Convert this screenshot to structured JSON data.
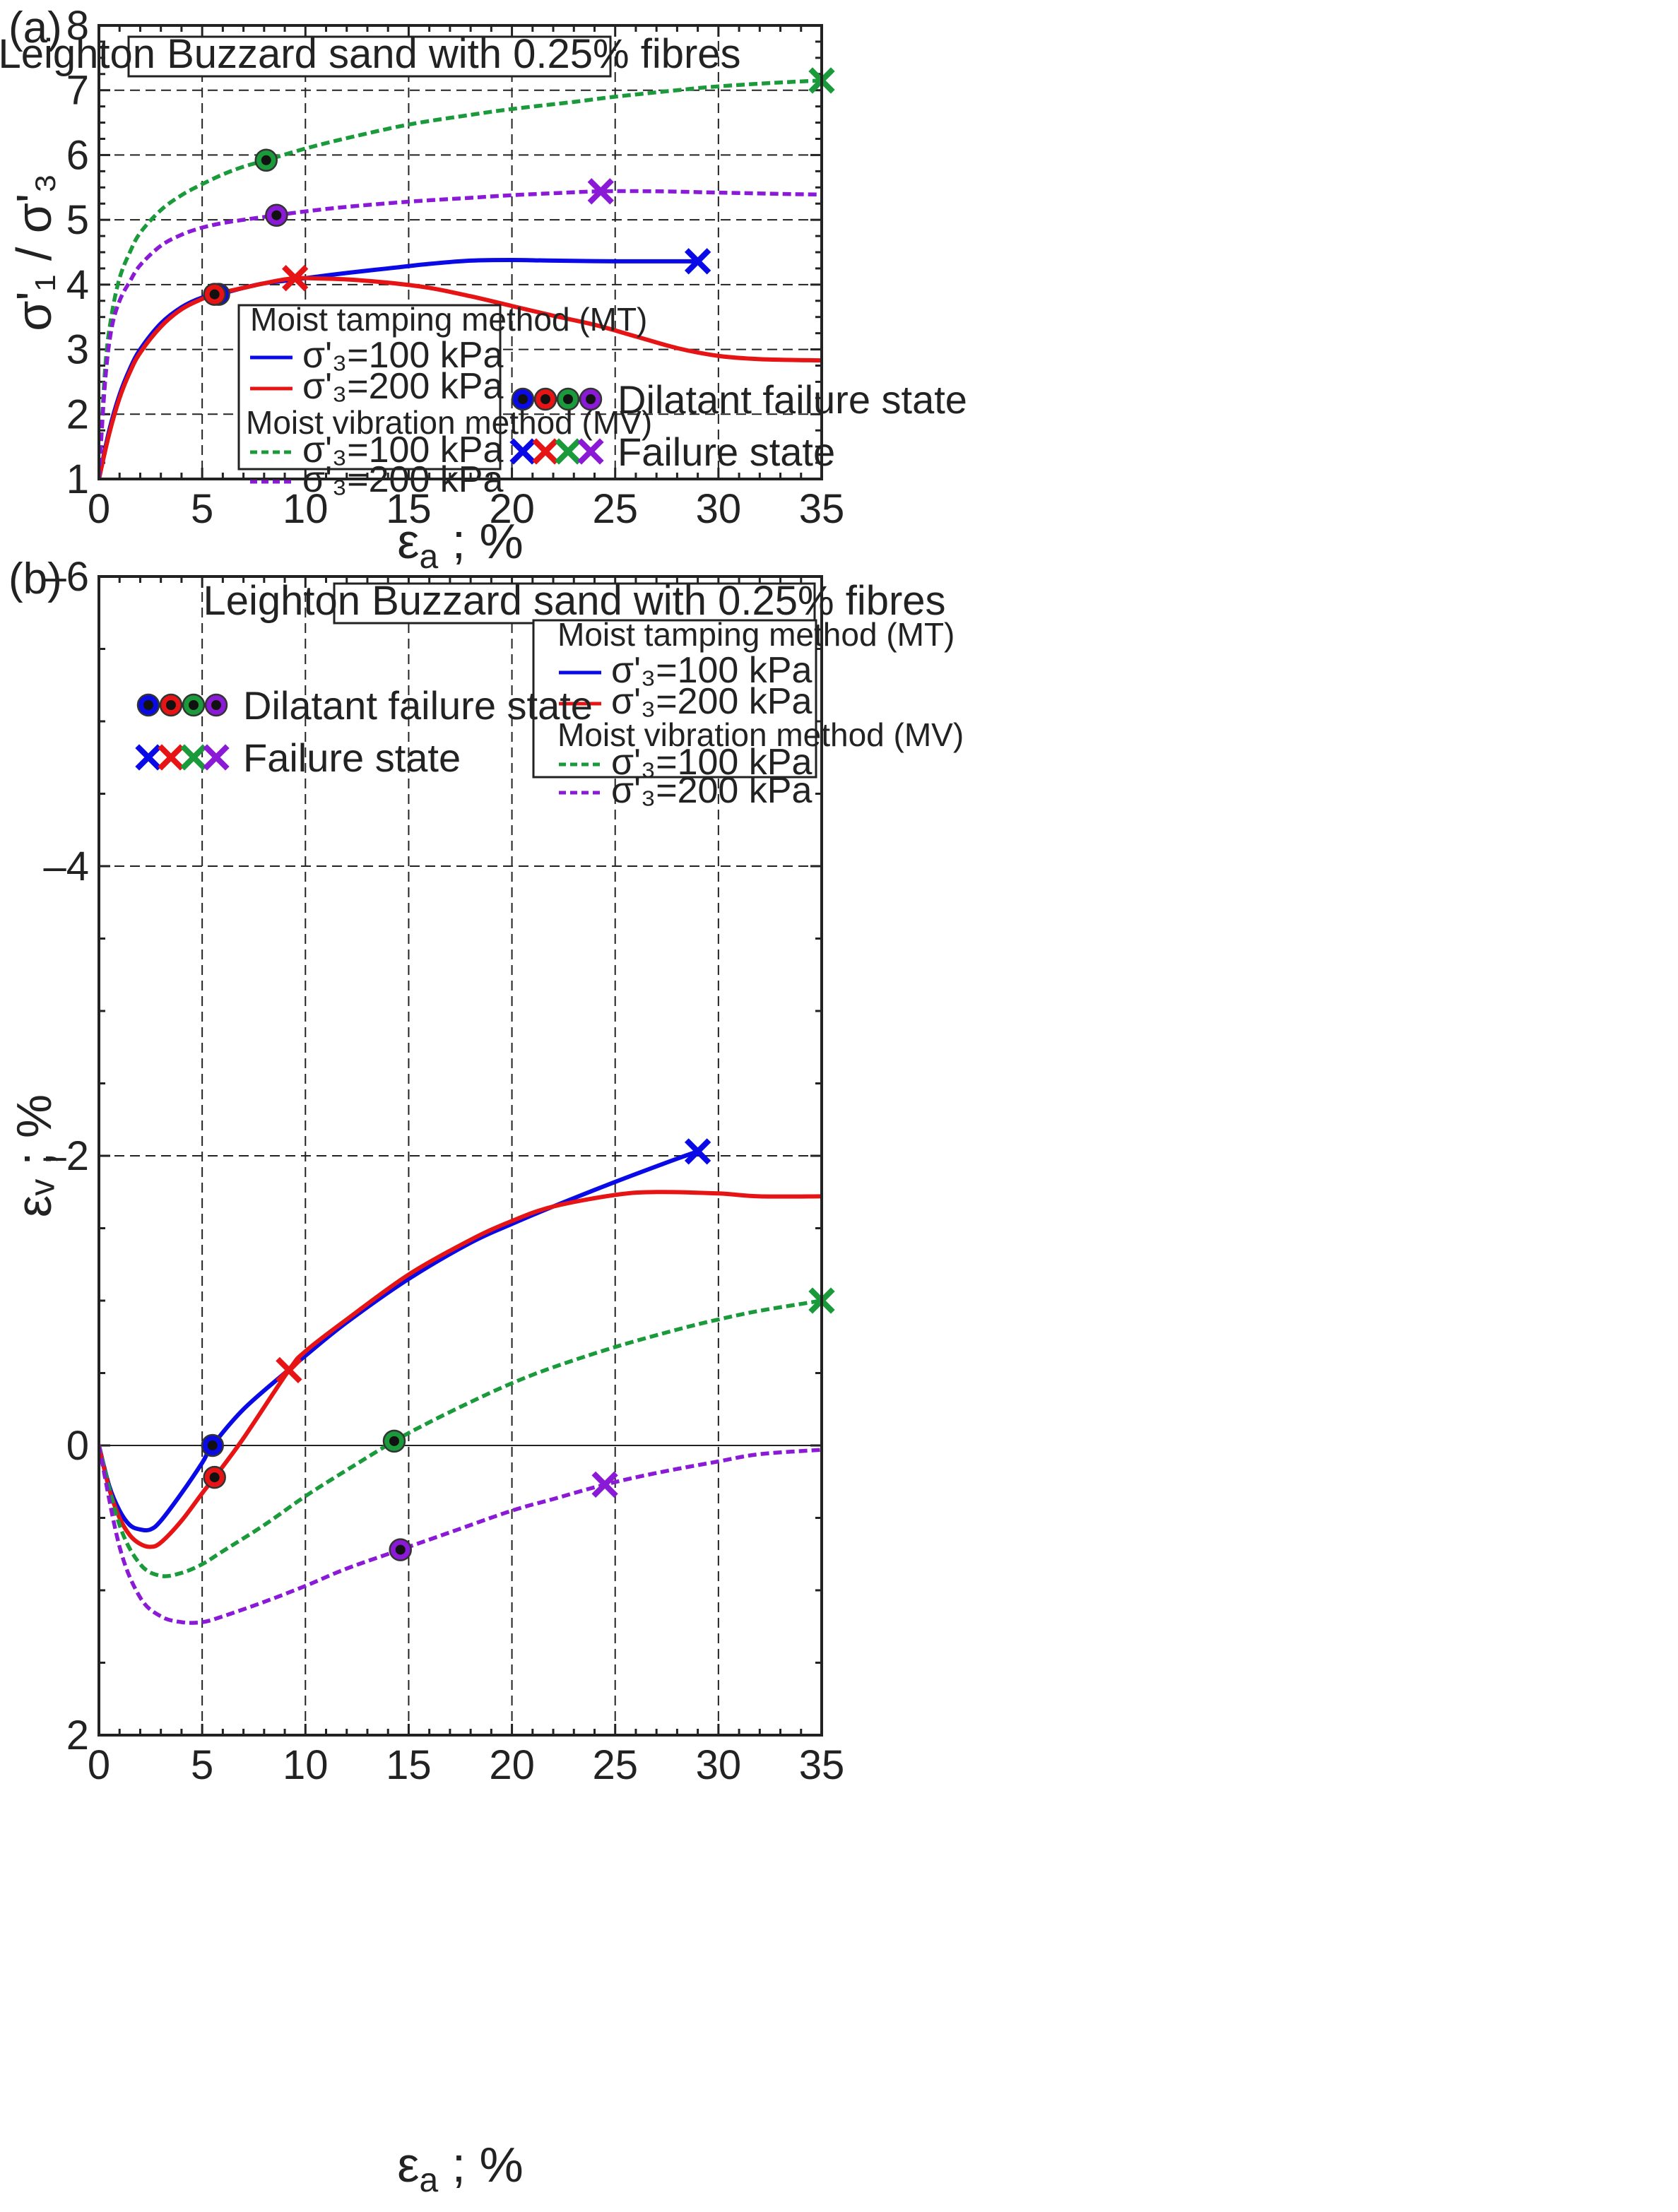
{
  "figure": {
    "panels": [
      "(a)",
      "(b)"
    ]
  },
  "chart_data": [
    {
      "type": "line",
      "panel_label": "(a)",
      "title": "Leighton Buzzard sand with 0.25% fibres",
      "xlabel_main": "ε",
      "xlabel_sub": "a",
      "xlabel_tail": " ; %",
      "ylabel": "σ'₁ / σ'₃",
      "xlim": [
        0,
        35
      ],
      "ylim": [
        1,
        8
      ],
      "x_ticks": [
        0,
        5,
        10,
        15,
        20,
        25,
        30,
        35
      ],
      "y_ticks": [
        1,
        2,
        3,
        4,
        5,
        6,
        7,
        8
      ],
      "legend": {
        "mt_header": "Moist tamping method (MT)",
        "mv_header": "Moist vibration method (MV)",
        "mt_100": "σ'₃=100 kPa",
        "mt_200": "σ'₃=200 kPa",
        "mv_100": "σ'₃=100 kPa",
        "mv_200": "σ'₃=200 kPa"
      },
      "marker_legend": {
        "dilatant": "Dilatant failure state",
        "failure": "Failure state"
      },
      "series": [
        {
          "name": "MT σ'3=100 kPa",
          "color": "#0a0ae6",
          "style": "solid",
          "x": [
            0,
            0.5,
            1,
            1.5,
            2,
            3,
            4,
            5,
            5.8,
            7,
            8,
            9,
            10,
            12,
            14,
            16,
            18,
            20,
            22,
            25,
            28,
            29
          ],
          "y": [
            1,
            1.75,
            2.3,
            2.7,
            3.0,
            3.4,
            3.65,
            3.8,
            3.85,
            3.95,
            4.02,
            4.06,
            4.1,
            4.18,
            4.25,
            4.32,
            4.37,
            4.38,
            4.37,
            4.36,
            4.36,
            4.36
          ],
          "dilatant": [
            5.8,
            3.85
          ],
          "failure": [
            29,
            4.36
          ]
        },
        {
          "name": "MT σ'3=200 kPa",
          "color": "#e61414",
          "style": "solid",
          "x": [
            0,
            0.5,
            1,
            1.5,
            2,
            3,
            4,
            5,
            5.6,
            7,
            8,
            9,
            9.5,
            10,
            12,
            14,
            16,
            18,
            20,
            22,
            24,
            26,
            28,
            30,
            32,
            35
          ],
          "y": [
            1,
            1.7,
            2.25,
            2.65,
            2.95,
            3.35,
            3.62,
            3.78,
            3.85,
            3.95,
            4.02,
            4.08,
            4.1,
            4.1,
            4.08,
            4.03,
            3.95,
            3.82,
            3.67,
            3.52,
            3.38,
            3.2,
            3.02,
            2.9,
            2.85,
            2.83
          ],
          "dilatant": [
            5.6,
            3.85
          ],
          "failure": [
            9.5,
            4.1
          ]
        },
        {
          "name": "MV σ'3=100 kPa",
          "color": "#1a9a3a",
          "style": "dashed",
          "x": [
            0,
            0.3,
            0.6,
            1,
            1.5,
            2,
            3,
            4,
            5,
            6,
            7,
            8.1,
            10,
            12,
            15,
            18,
            20,
            23,
            25,
            28,
            30,
            33,
            35
          ],
          "y": [
            1,
            2.7,
            3.5,
            4.1,
            4.5,
            4.8,
            5.15,
            5.38,
            5.55,
            5.7,
            5.82,
            5.92,
            6.1,
            6.26,
            6.47,
            6.62,
            6.71,
            6.82,
            6.9,
            7.0,
            7.06,
            7.12,
            7.15
          ],
          "dilatant": [
            8.1,
            5.92
          ],
          "failure": [
            35,
            7.15
          ]
        },
        {
          "name": "MV σ'3=200 kPa",
          "color": "#8a1ad6",
          "style": "dashed",
          "x": [
            0,
            0.3,
            0.6,
            1,
            1.5,
            2,
            3,
            4,
            5,
            6,
            7,
            8.6,
            10,
            12,
            15,
            18,
            20,
            22,
            24.3,
            27,
            30,
            33,
            35
          ],
          "y": [
            1,
            2.5,
            3.3,
            3.75,
            4.05,
            4.3,
            4.6,
            4.77,
            4.88,
            4.95,
            5.0,
            5.07,
            5.13,
            5.2,
            5.28,
            5.34,
            5.38,
            5.41,
            5.44,
            5.44,
            5.42,
            5.4,
            5.39
          ],
          "dilatant": [
            8.6,
            5.07
          ],
          "failure": [
            24.3,
            5.44
          ]
        }
      ]
    },
    {
      "type": "line",
      "panel_label": "(b)",
      "title": "Leighton Buzzard sand with 0.25% fibres",
      "xlabel_main": "ε",
      "xlabel_sub": "a",
      "xlabel_tail": " ; %",
      "ylabel": "εᵥ ; %",
      "xlim": [
        0,
        35
      ],
      "ylim": [
        2,
        -6
      ],
      "x_ticks": [
        0,
        5,
        10,
        15,
        20,
        25,
        30,
        35
      ],
      "y_ticks": [
        2,
        0,
        -2,
        -4,
        -6
      ],
      "y_tick_labels": [
        "2",
        "0",
        "–2",
        "–4",
        "–6"
      ],
      "legend": {
        "mt_header": "Moist tamping method (MT)",
        "mv_header": "Moist vibration method (MV)",
        "mt_100": "σ'₃=100 kPa",
        "mt_200": "σ'₃=200 kPa",
        "mv_100": "σ'₃=100 kPa",
        "mv_200": "σ'₃=200 kPa"
      },
      "marker_legend": {
        "dilatant": "Dilatant failure state",
        "failure": "Failure state"
      },
      "series": [
        {
          "name": "MT σ'3=100 kPa",
          "color": "#0a0ae6",
          "style": "solid",
          "x": [
            0,
            0.5,
            1,
            1.5,
            2,
            2.5,
            3,
            4,
            5,
            5.5,
            7,
            9,
            10,
            12,
            15,
            18,
            20,
            22,
            25,
            28,
            29
          ],
          "y": [
            0,
            0.28,
            0.45,
            0.55,
            0.58,
            0.58,
            0.52,
            0.33,
            0.12,
            0.0,
            -0.25,
            -0.5,
            -0.62,
            -0.85,
            -1.15,
            -1.4,
            -1.53,
            -1.65,
            -1.82,
            -1.98,
            -2.03
          ],
          "dilatant": [
            5.5,
            0.0
          ],
          "failure": [
            29,
            -2.03
          ]
        },
        {
          "name": "MT σ'3=200 kPa",
          "color": "#e61414",
          "style": "solid",
          "x": [
            0,
            0.5,
            1,
            1.5,
            2,
            2.5,
            3,
            4,
            5,
            5.6,
            7,
            9.2,
            10,
            12,
            15,
            18,
            20,
            22,
            25,
            27,
            30,
            32,
            35
          ],
          "y": [
            0,
            0.3,
            0.5,
            0.62,
            0.68,
            0.7,
            0.67,
            0.52,
            0.33,
            0.22,
            -0.05,
            -0.52,
            -0.65,
            -0.87,
            -1.18,
            -1.42,
            -1.55,
            -1.65,
            -1.73,
            -1.75,
            -1.74,
            -1.72,
            -1.72
          ],
          "dilatant": [
            5.6,
            0.22
          ],
          "failure": [
            9.2,
            -0.52
          ]
        },
        {
          "name": "MV σ'3=100 kPa",
          "color": "#1a9a3a",
          "style": "dashed",
          "x": [
            0,
            1,
            2,
            3,
            4,
            5,
            6,
            8,
            10,
            12,
            14.3,
            16,
            18,
            20,
            22,
            25,
            28,
            30,
            32,
            35
          ],
          "y": [
            0,
            0.55,
            0.82,
            0.9,
            0.88,
            0.82,
            0.73,
            0.55,
            0.35,
            0.17,
            -0.03,
            -0.16,
            -0.3,
            -0.43,
            -0.54,
            -0.68,
            -0.8,
            -0.87,
            -0.93,
            -1.0
          ],
          "dilatant": [
            14.3,
            -0.03
          ],
          "failure": [
            35,
            -1.0
          ]
        },
        {
          "name": "MV σ'3=200 kPa",
          "color": "#8a1ad6",
          "style": "dashed",
          "x": [
            0,
            1,
            2,
            3,
            4,
            5,
            6,
            8,
            10,
            12,
            14.6,
            17,
            20,
            22,
            24.5,
            27,
            30,
            32,
            35
          ],
          "y": [
            0,
            0.7,
            1.05,
            1.18,
            1.22,
            1.22,
            1.18,
            1.08,
            0.97,
            0.85,
            0.72,
            0.6,
            0.45,
            0.37,
            0.27,
            0.19,
            0.11,
            0.06,
            0.03
          ],
          "dilatant": [
            14.6,
            0.72
          ],
          "failure": [
            24.5,
            0.27
          ]
        }
      ]
    }
  ]
}
